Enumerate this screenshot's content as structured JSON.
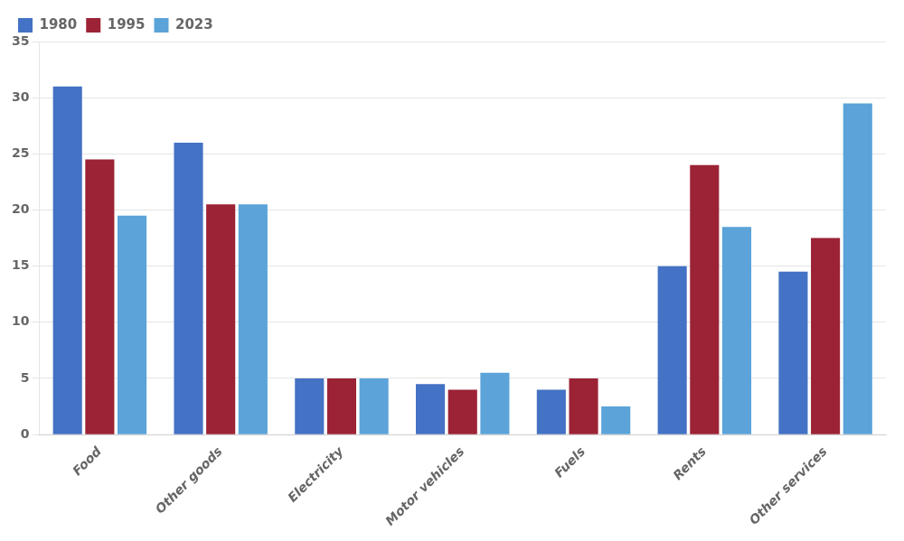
{
  "chart_data": {
    "type": "bar",
    "categories": [
      "Food",
      "Other goods",
      "Electricity",
      "Motor vehicles",
      "Fuels",
      "Rents",
      "Other services"
    ],
    "series": [
      {
        "name": "1980",
        "color": "#4472C4",
        "values": [
          31,
          26,
          5,
          4.5,
          4,
          15,
          14.5
        ]
      },
      {
        "name": "1995",
        "color": "#9B2335",
        "values": [
          24.5,
          20.5,
          5,
          4,
          5,
          24,
          17.5
        ]
      },
      {
        "name": "2023",
        "color": "#5BA3D9",
        "values": [
          19.5,
          20.5,
          5,
          5.5,
          2.5,
          18.5,
          29.5
        ]
      }
    ],
    "ylim": [
      0,
      35
    ],
    "yticks": [
      0,
      5,
      10,
      15,
      20,
      25,
      30,
      35
    ],
    "grid": true,
    "legend": "upper left"
  }
}
